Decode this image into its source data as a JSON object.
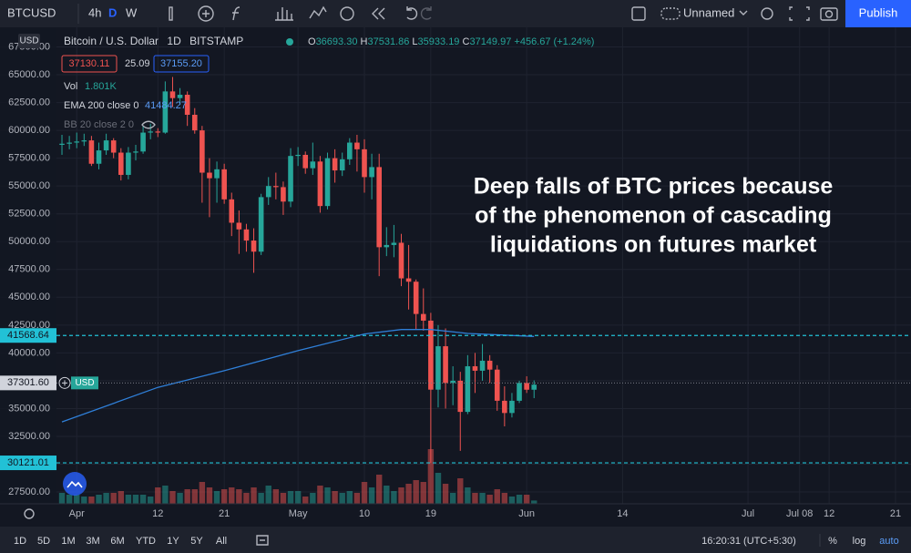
{
  "toolbar": {
    "symbol": "BTCUSD",
    "intervals": [
      "4h",
      "D",
      "W"
    ],
    "layout_name": "Unnamed",
    "publish": "Publish"
  },
  "legend": {
    "title": "Bitcoin / U.S. Dollar",
    "interval": "1D",
    "exchange": "BITSTAMP",
    "open_label": "O",
    "open": "36693.30",
    "high_label": "H",
    "high": "37531.86",
    "low_label": "L",
    "low": "35933.19",
    "close_label": "C",
    "close": "37149.97",
    "change": "+456.67 (+1.24%)",
    "bid": "37130.11",
    "spread": "25.09",
    "ask": "37155.20",
    "volume_label": "Vol",
    "volume": "1.801K",
    "ema_label": "EMA 200 close 0",
    "ema": "41484.27",
    "bb_label": "BB 20 close 2 0"
  },
  "annotation": [
    "Deep falls of BTC prices because",
    "of the phenomenon of cascading",
    "liquidations on futures market"
  ],
  "bottom_bar": {
    "ranges": [
      "1D",
      "5D",
      "1M",
      "3M",
      "6M",
      "YTD",
      "1Y",
      "5Y",
      "All"
    ],
    "time": "16:20:31 (UTC+5:30)",
    "percent": "%",
    "log": "log",
    "auto": "auto"
  },
  "chart": {
    "type": "candlestick",
    "currency": "USD",
    "grid": true,
    "colors": {
      "up": "#26a69a",
      "down": "#ef5350",
      "ema": "#2f7fd8",
      "price_line": "#22c1d6"
    },
    "ylim": [
      26440,
      69260
    ],
    "yticks": [
      {
        "value": 27500,
        "label": "27500.00"
      },
      {
        "value": 30000,
        "label": "30000.00"
      },
      {
        "value": 32500,
        "label": "32500.00"
      },
      {
        "value": 35000,
        "label": "35000.00"
      },
      {
        "value": 37500,
        "label": "37500.00"
      },
      {
        "value": 40000,
        "label": "40000.00"
      },
      {
        "value": 42500,
        "label": "42500.00"
      },
      {
        "value": 45000,
        "label": "45000.00"
      },
      {
        "value": 47500,
        "label": "47500.00"
      },
      {
        "value": 50000,
        "label": "50000.00"
      },
      {
        "value": 52500,
        "label": "52500.00"
      },
      {
        "value": 55000,
        "label": "55000.00"
      },
      {
        "value": 57500,
        "label": "57500.00"
      },
      {
        "value": 60000,
        "label": "60000.00"
      },
      {
        "value": 62500,
        "label": "62500.00"
      },
      {
        "value": 65000,
        "label": "65000.00"
      },
      {
        "value": 67500,
        "label": "67500.00"
      }
    ],
    "xlim": [
      -8.4,
      115.1
    ],
    "xticks": [
      {
        "value": 2,
        "label": "Apr"
      },
      {
        "value": 13,
        "label": "12"
      },
      {
        "value": 22,
        "label": "21"
      },
      {
        "value": 32,
        "label": "May"
      },
      {
        "value": 41,
        "label": "10"
      },
      {
        "value": 50,
        "label": "19"
      },
      {
        "value": 63,
        "label": "Jun"
      },
      {
        "value": 76,
        "label": "14"
      },
      {
        "value": 93,
        "label": "Jul"
      },
      {
        "value": 100,
        "label": "Jul 08"
      },
      {
        "value": 104,
        "label": "12"
      },
      {
        "value": 113,
        "label": "21"
      }
    ],
    "open": [
      58700,
      58800,
      58900,
      59000,
      59100,
      57000,
      58200,
      59100,
      58000,
      56000,
      58000,
      58100,
      59800,
      59900,
      59800,
      63500,
      62900,
      63200,
      61400,
      60000,
      56200,
      55700,
      56500,
      53800,
      51700,
      51100,
      50100,
      49100,
      54000,
      55000,
      54900,
      53600,
      57700,
      57800,
      56600,
      57200,
      53200,
      57500,
      56400,
      57400,
      58900,
      58300,
      55800,
      56700,
      49500,
      49700,
      49900,
      46700,
      46400,
      43500,
      42900,
      36700,
      40600,
      37300,
      37500,
      34700,
      38800,
      38400,
      39300,
      38500,
      35700,
      34600,
      35700,
      37300,
      36693.3
    ],
    "high": [
      59600,
      59500,
      59800,
      59700,
      59500,
      58900,
      59700,
      59300,
      58400,
      58500,
      58700,
      60400,
      60600,
      60200,
      64400,
      64800,
      63800,
      63500,
      62000,
      60400,
      57500,
      57200,
      57000,
      54400,
      52800,
      51600,
      51200,
      54300,
      55800,
      56200,
      55400,
      58400,
      58500,
      58100,
      58900,
      57700,
      58000,
      58300,
      58000,
      59300,
      59600,
      59200,
      57900,
      57900,
      51300,
      51500,
      50700,
      49700,
      46600,
      45800,
      43600,
      42500,
      42200,
      38800,
      38300,
      39800,
      40000,
      40800,
      39800,
      38900,
      37000,
      36400,
      37500,
      37900,
      37531.86
    ],
    "low": [
      57800,
      58300,
      58400,
      58600,
      56800,
      56500,
      57800,
      57500,
      55500,
      55600,
      57300,
      57900,
      59200,
      59400,
      59700,
      62100,
      62300,
      60400,
      59700,
      53500,
      52200,
      53500,
      53400,
      50500,
      48900,
      49100,
      47200,
      48800,
      53300,
      53800,
      52400,
      53100,
      56800,
      56100,
      56000,
      52600,
      52900,
      55300,
      55900,
      56900,
      56300,
      54400,
      53800,
      46900,
      48700,
      48600,
      46000,
      43900,
      42100,
      42000,
      30100,
      35100,
      35000,
      35300,
      31200,
      34500,
      36400,
      37500,
      37300,
      34800,
      33400,
      34200,
      35500,
      36400,
      35933.19
    ],
    "close": [
      58800,
      58900,
      59000,
      59100,
      57000,
      58200,
      59100,
      58000,
      56000,
      58000,
      58100,
      59800,
      59900,
      59800,
      63500,
      62900,
      63200,
      61400,
      60000,
      56200,
      55700,
      56500,
      53800,
      51700,
      51100,
      50100,
      49100,
      54000,
      55000,
      54900,
      53600,
      57700,
      57800,
      56600,
      57200,
      53200,
      57500,
      56400,
      57400,
      58900,
      58300,
      55800,
      56700,
      49500,
      49700,
      49900,
      46700,
      46400,
      43500,
      42900,
      36700,
      40600,
      37300,
      37500,
      34700,
      38800,
      38400,
      39300,
      38500,
      35700,
      34600,
      35700,
      37300,
      36693.3,
      37149.97
    ],
    "volume": [
      6,
      5,
      5,
      4,
      4,
      5,
      6,
      6,
      7,
      5,
      5,
      5,
      4,
      9,
      10,
      7,
      6,
      8,
      8,
      12,
      9,
      7,
      8,
      9,
      8,
      6,
      9,
      6,
      10,
      8,
      6,
      7,
      7,
      4,
      6,
      10,
      9,
      7,
      6,
      7,
      6,
      12,
      9,
      16,
      10,
      7,
      9,
      11,
      13,
      12,
      30,
      17,
      11,
      6,
      14,
      9,
      6,
      6,
      5,
      8,
      6,
      4,
      5,
      5,
      1.801
    ],
    "ema": {
      "x": [
        0,
        13,
        22,
        32,
        41,
        46,
        50,
        55,
        64
      ],
      "values": [
        33800,
        36900,
        38400,
        40200,
        41700,
        42100,
        42100,
        41750,
        41484.27
      ]
    },
    "price_lines": [
      41568.64,
      30121.01
    ],
    "current_price": {
      "value": 37301.6,
      "label": "37301.60"
    },
    "current_currency": "USD"
  }
}
